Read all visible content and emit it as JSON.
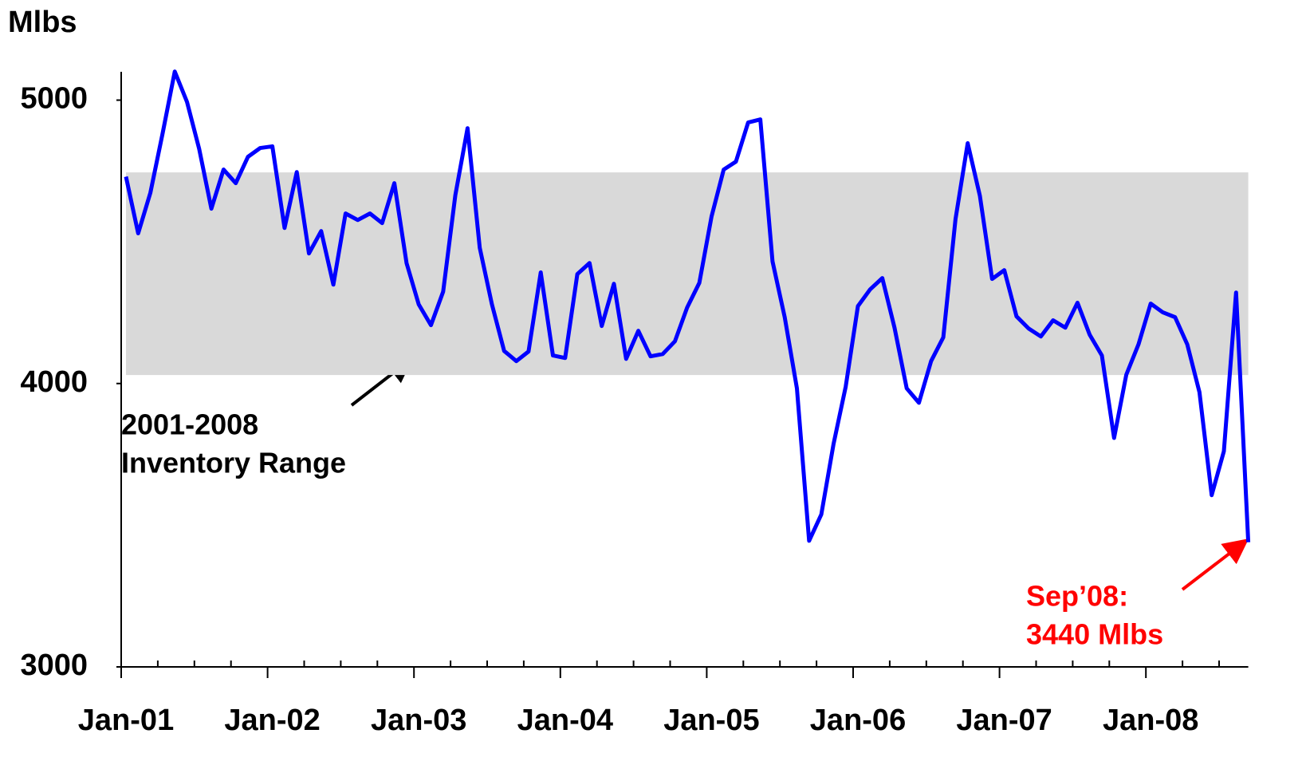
{
  "chart_data": {
    "type": "line",
    "y_axis_label": "Mlbs",
    "categories": [
      "Jan-01",
      null,
      null,
      null,
      null,
      null,
      null,
      null,
      null,
      null,
      null,
      null,
      "Jan-02",
      null,
      null,
      null,
      null,
      null,
      null,
      null,
      null,
      null,
      null,
      null,
      "Jan-03",
      null,
      null,
      null,
      null,
      null,
      null,
      null,
      null,
      null,
      null,
      null,
      "Jan-04",
      null,
      null,
      null,
      null,
      null,
      null,
      null,
      null,
      null,
      null,
      null,
      "Jan-05",
      null,
      null,
      null,
      null,
      null,
      null,
      null,
      null,
      null,
      null,
      null,
      "Jan-06",
      null,
      null,
      null,
      null,
      null,
      null,
      null,
      null,
      null,
      null,
      null,
      "Jan-07",
      null,
      null,
      null,
      null,
      null,
      null,
      null,
      null,
      null,
      null,
      null,
      "Jan-08",
      null,
      null,
      null,
      null,
      null,
      null,
      null,
      null
    ],
    "series": [
      {
        "color": "#0000ff",
        "values": [
          4730,
          4530,
          4673,
          4882,
          5101,
          4994,
          4828,
          4617,
          4755,
          4707,
          4800,
          4831,
          4837,
          4549,
          4746,
          4459,
          4538,
          4349,
          4600,
          4577,
          4600,
          4566,
          4707,
          4425,
          4279,
          4206,
          4324,
          4665,
          4901,
          4479,
          4279,
          4115,
          4079,
          4113,
          4392,
          4099,
          4090,
          4386,
          4425,
          4203,
          4352,
          4087,
          4186,
          4096,
          4104,
          4149,
          4268,
          4355,
          4589,
          4755,
          4783,
          4921,
          4932,
          4431,
          4234,
          3983,
          3445,
          3538,
          3786,
          3989,
          4273,
          4332,
          4372,
          4197,
          3983,
          3932,
          4079,
          4163,
          4580,
          4848,
          4662,
          4369,
          4400,
          4237,
          4194,
          4166,
          4223,
          4197,
          4285,
          4172,
          4099,
          3808,
          4031,
          4138,
          4282,
          4251,
          4234,
          4138,
          3969,
          3606,
          3761,
          4321,
          3440
        ]
      }
    ],
    "range_band": {
      "ylim": [
        4030,
        4745
      ],
      "color": "#d9d9d9"
    },
    "ylim": [
      3000,
      5100
    ],
    "yticks": [
      3000,
      4000,
      5000
    ],
    "annotations": [
      {
        "lines": [
          "2001-2008",
          "Inventory Range"
        ],
        "color": "#000000"
      },
      {
        "lines": [
          "Sep’08:",
          "3440 Mlbs"
        ],
        "color": "#ff0000"
      }
    ]
  }
}
